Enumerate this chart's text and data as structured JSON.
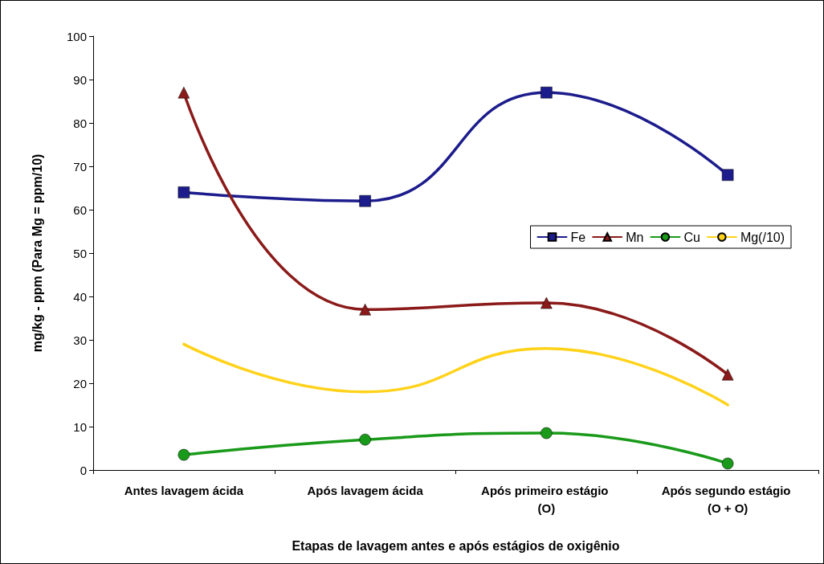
{
  "chart_data": {
    "type": "line",
    "xlabel": "Etapas de lavagem antes e após estágios de oxigênio",
    "ylabel": "mg/kg - ppm (Para Mg = ppm/10)",
    "categories": [
      "Antes lavagem ácida",
      "Após lavagem ácida",
      "Após primeiro estágio (O)",
      "Após segundo estágio (O + O)"
    ],
    "series": [
      {
        "name": "Fe",
        "color": "#1c1c8c",
        "marker": "square",
        "values": [
          64,
          62,
          87,
          68
        ]
      },
      {
        "name": "Mn",
        "color": "#8b1a1a",
        "marker": "triangle",
        "values": [
          87,
          37,
          38.5,
          22
        ]
      },
      {
        "name": "Cu",
        "color": "#1a9a1a",
        "marker": "circle",
        "values": [
          3.5,
          7,
          8.5,
          1.5
        ]
      },
      {
        "name": "Mg(/10)",
        "color": "#ffd21a",
        "marker": "none",
        "values": [
          29,
          18,
          28,
          15
        ]
      }
    ],
    "ylim": [
      0,
      100
    ],
    "yticks": [
      0,
      10,
      20,
      30,
      40,
      50,
      60,
      70,
      80,
      90,
      100
    ],
    "grid": false,
    "legend": "right"
  }
}
